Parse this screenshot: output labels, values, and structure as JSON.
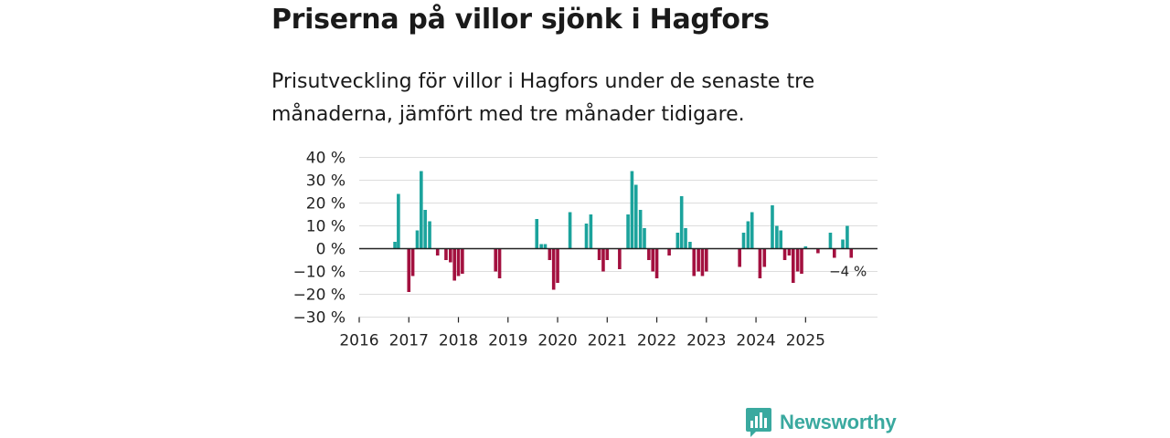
{
  "title": "Priserna på villor sjönk i Hagfors",
  "subtitle": "Prisutveckling för villor i Hagfors under de senaste tre månaderna, jämfört med tre månader tidigare.",
  "colors": {
    "positive": "#1ba39c",
    "negative": "#a3103f",
    "grid": "#dddddd",
    "axis": "#222222",
    "brand": "#3aa99f"
  },
  "brand": {
    "name": "Newsworthy"
  },
  "chart_data": {
    "type": "bar",
    "title": "Priserna på villor sjönk i Hagfors",
    "xlabel": "",
    "ylabel": "",
    "ylim": [
      -30,
      40
    ],
    "yticks": [
      40,
      30,
      20,
      10,
      0,
      -10,
      -20,
      -30
    ],
    "ytick_labels": [
      "40 %",
      "30 %",
      "20 %",
      "10 %",
      "0 %",
      "−10 %",
      "−20 %",
      "−30 %"
    ],
    "xlim": [
      2016,
      2026.45
    ],
    "xtick_labels": [
      "2016",
      "2017",
      "2018",
      "2019",
      "2020",
      "2021",
      "2022",
      "2023",
      "2024",
      "2025"
    ],
    "last_value_label": "−4 %",
    "points": [
      {
        "x": 2016.72,
        "v": 3
      },
      {
        "x": 2016.79,
        "v": 24
      },
      {
        "x": 2017.0,
        "v": -19
      },
      {
        "x": 2017.08,
        "v": -12
      },
      {
        "x": 2017.17,
        "v": 8
      },
      {
        "x": 2017.25,
        "v": 34
      },
      {
        "x": 2017.33,
        "v": 17
      },
      {
        "x": 2017.42,
        "v": 12
      },
      {
        "x": 2017.58,
        "v": -3
      },
      {
        "x": 2017.75,
        "v": -5
      },
      {
        "x": 2017.84,
        "v": -6
      },
      {
        "x": 2017.92,
        "v": -14
      },
      {
        "x": 2018.0,
        "v": -12
      },
      {
        "x": 2018.08,
        "v": -11
      },
      {
        "x": 2018.75,
        "v": -10
      },
      {
        "x": 2018.83,
        "v": -13
      },
      {
        "x": 2019.58,
        "v": 13
      },
      {
        "x": 2019.67,
        "v": 2
      },
      {
        "x": 2019.75,
        "v": 2
      },
      {
        "x": 2019.84,
        "v": -5
      },
      {
        "x": 2019.92,
        "v": -18
      },
      {
        "x": 2020.0,
        "v": -15
      },
      {
        "x": 2020.25,
        "v": 16
      },
      {
        "x": 2020.58,
        "v": 11
      },
      {
        "x": 2020.67,
        "v": 15
      },
      {
        "x": 2020.84,
        "v": -5
      },
      {
        "x": 2020.92,
        "v": -10
      },
      {
        "x": 2021.0,
        "v": -5
      },
      {
        "x": 2021.25,
        "v": -9
      },
      {
        "x": 2021.42,
        "v": 15
      },
      {
        "x": 2021.5,
        "v": 34
      },
      {
        "x": 2021.58,
        "v": 28
      },
      {
        "x": 2021.67,
        "v": 17
      },
      {
        "x": 2021.75,
        "v": 9
      },
      {
        "x": 2021.84,
        "v": -5
      },
      {
        "x": 2021.92,
        "v": -10
      },
      {
        "x": 2022.0,
        "v": -13
      },
      {
        "x": 2022.25,
        "v": -3
      },
      {
        "x": 2022.42,
        "v": 7
      },
      {
        "x": 2022.5,
        "v": 23
      },
      {
        "x": 2022.58,
        "v": 9
      },
      {
        "x": 2022.67,
        "v": 3
      },
      {
        "x": 2022.75,
        "v": -12
      },
      {
        "x": 2022.84,
        "v": -10
      },
      {
        "x": 2022.92,
        "v": -12
      },
      {
        "x": 2023.0,
        "v": -10
      },
      {
        "x": 2023.67,
        "v": -8
      },
      {
        "x": 2023.75,
        "v": 7
      },
      {
        "x": 2023.84,
        "v": 12
      },
      {
        "x": 2023.92,
        "v": 16
      },
      {
        "x": 2024.08,
        "v": -13
      },
      {
        "x": 2024.17,
        "v": -8
      },
      {
        "x": 2024.33,
        "v": 19
      },
      {
        "x": 2024.42,
        "v": 10
      },
      {
        "x": 2024.5,
        "v": 8
      },
      {
        "x": 2024.58,
        "v": -5
      },
      {
        "x": 2024.67,
        "v": -3
      },
      {
        "x": 2024.75,
        "v": -15
      },
      {
        "x": 2024.84,
        "v": -10
      },
      {
        "x": 2024.92,
        "v": -11
      },
      {
        "x": 2025.0,
        "v": 1
      },
      {
        "x": 2025.25,
        "v": -2
      },
      {
        "x": 2025.5,
        "v": 7
      },
      {
        "x": 2025.58,
        "v": -4
      },
      {
        "x": 2025.75,
        "v": 4
      },
      {
        "x": 2025.84,
        "v": 10
      },
      {
        "x": 2025.92,
        "v": -4
      }
    ]
  }
}
